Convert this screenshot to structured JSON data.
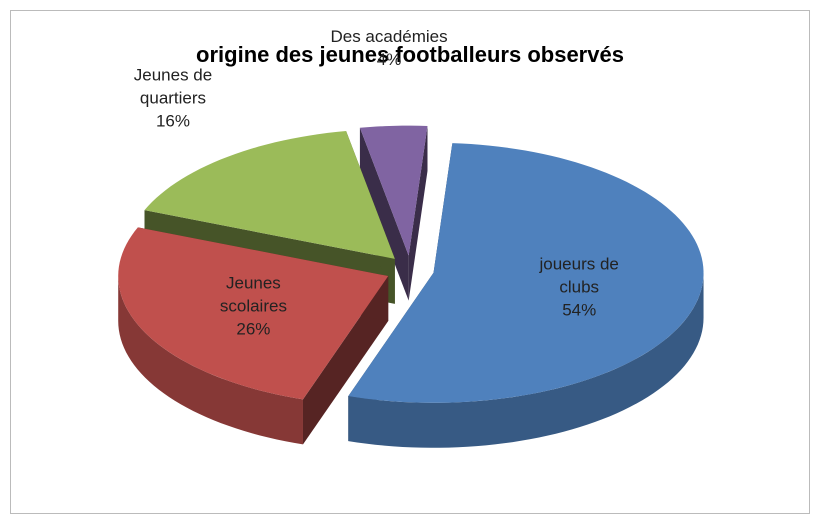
{
  "chart_data": {
    "type": "pie",
    "title": "origine des jeunes footballeurs observés",
    "categories": [
      "joueurs de clubs",
      "Jeunes scolaires",
      "Jeunes de quartiers",
      "Des académies"
    ],
    "values": [
      54,
      26,
      16,
      4
    ],
    "value_labels": [
      "54%",
      "26%",
      "16%",
      "4%"
    ],
    "colors": [
      "#4f81bd",
      "#c0504d",
      "#9bbb59",
      "#8064a2"
    ]
  }
}
